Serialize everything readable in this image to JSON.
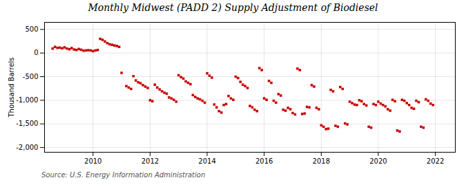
{
  "chart_data": {
    "type": "scatter",
    "title": "Monthly Midwest (PADD 2) Supply Adjustment of Biodiesel",
    "ylabel": "Thousand Barrels",
    "source": "Source: U.S. Energy Information Administration",
    "color": "#cc0000",
    "marker": "square",
    "grid": true,
    "xlim": [
      2008.3,
      2022.7
    ],
    "xticks": [
      2010,
      2012,
      2014,
      2016,
      2018,
      2020,
      2022
    ],
    "ylim": [
      -2100,
      650
    ],
    "yticks": [
      {
        "value": -2000,
        "label": "-2,000"
      },
      {
        "value": -1500,
        "label": "-1,500"
      },
      {
        "value": -1000,
        "label": "-1,000"
      },
      -500,
      0,
      500
    ],
    "x": [
      2008.5833333333333,
      2008.6666666666667,
      2008.75,
      2008.8333333333333,
      2008.9166666666667,
      2009,
      2009.0833333333333,
      2009.1666666666667,
      2009.25,
      2009.3333333333333,
      2009.4166666666667,
      2009.5,
      2009.5833333333333,
      2009.6666666666667,
      2009.75,
      2009.8333333333333,
      2009.9166666666667,
      2010,
      2010.0833333333333,
      2010.1666666666667,
      2010.25,
      2010.3333333333333,
      2010.4166666666667,
      2010.5,
      2010.5833333333333,
      2010.6666666666667,
      2010.75,
      2010.8333333333333,
      2010.9166666666667,
      2011,
      2011.1666666666667,
      2011.25,
      2011.3333333333333,
      2011.4166666666667,
      2011.5,
      2011.5833333333333,
      2011.6666666666667,
      2011.75,
      2011.8333333333333,
      2011.9166666666667,
      2012,
      2012.0833333333333,
      2012.1666666666667,
      2012.25,
      2012.3333333333333,
      2012.4166666666667,
      2012.5,
      2012.5833333333333,
      2012.6666666666667,
      2012.75,
      2012.8333333333333,
      2012.9166666666667,
      2013,
      2013.0833333333333,
      2013.1666666666667,
      2013.25,
      2013.3333333333333,
      2013.4166666666667,
      2013.5,
      2013.5833333333333,
      2013.6666666666667,
      2013.75,
      2013.8333333333333,
      2013.9166666666667,
      2014,
      2014.0833333333333,
      2014.1666666666667,
      2014.25,
      2014.3333333333333,
      2014.4166666666667,
      2014.5,
      2014.5833333333333,
      2014.6666666666667,
      2014.75,
      2014.8333333333333,
      2014.9166666666667,
      2015,
      2015.0833333333333,
      2015.1666666666667,
      2015.25,
      2015.3333333333333,
      2015.4166666666667,
      2015.5,
      2015.5833333333333,
      2015.6666666666667,
      2015.75,
      2015.8333333333333,
      2015.9166666666667,
      2016,
      2016.0833333333333,
      2016.1666666666667,
      2016.25,
      2016.3333333333333,
      2016.4166666666667,
      2016.5,
      2016.5833333333333,
      2016.6666666666667,
      2016.75,
      2016.8333333333333,
      2016.9166666666667,
      2017,
      2017.0833333333333,
      2017.1666666666667,
      2017.25,
      2017.3333333333333,
      2017.4166666666667,
      2017.5,
      2017.5833333333333,
      2017.6666666666667,
      2017.75,
      2017.8333333333333,
      2017.9166666666667,
      2018,
      2018.0833333333333,
      2018.1666666666667,
      2018.25,
      2018.3333333333333,
      2018.4166666666667,
      2018.5,
      2018.5833333333333,
      2018.6666666666667,
      2018.75,
      2018.8333333333333,
      2018.9166666666667,
      2019,
      2019.0833333333333,
      2019.1666666666667,
      2019.25,
      2019.3333333333333,
      2019.4166666666667,
      2019.5,
      2019.5833333333333,
      2019.6666666666667,
      2019.75,
      2019.8333333333333,
      2019.9166666666667,
      2020,
      2020.0833333333333,
      2020.1666666666667,
      2020.25,
      2020.3333333333333,
      2020.4166666666667,
      2020.5,
      2020.5833333333333,
      2020.6666666666667,
      2020.75,
      2020.8333333333333,
      2020.9166666666667,
      2021,
      2021.0833333333333,
      2021.1666666666667,
      2021.25,
      2021.3333333333333,
      2021.4166666666667,
      2021.5,
      2021.5833333333333,
      2021.6666666666667,
      2021.75,
      2021.8333333333333,
      2021.9166666666667
    ],
    "values": [
      95,
      130,
      110,
      115,
      100,
      120,
      95,
      80,
      105,
      75,
      65,
      85,
      70,
      50,
      55,
      60,
      55,
      40,
      55,
      65,
      300,
      280,
      245,
      210,
      185,
      175,
      160,
      150,
      130,
      -420,
      -700,
      -730,
      -760,
      -490,
      -580,
      -620,
      -640,
      -680,
      -710,
      -740,
      -1000,
      -1020,
      -670,
      -730,
      -770,
      -810,
      -840,
      -860,
      -940,
      -960,
      -990,
      -1030,
      -470,
      -510,
      -540,
      -600,
      -630,
      -660,
      -890,
      -930,
      -960,
      -980,
      -1010,
      -1050,
      -430,
      -480,
      -520,
      -1090,
      -1150,
      -1230,
      -1260,
      -1100,
      -1080,
      -910,
      -960,
      -990,
      -500,
      -530,
      -610,
      -670,
      -700,
      -740,
      -1120,
      -1150,
      -1200,
      -1230,
      -320,
      -360,
      -960,
      -990,
      -590,
      -630,
      -1010,
      -1050,
      -870,
      -900,
      -1200,
      -1220,
      -1160,
      -1190,
      -1270,
      -1300,
      -330,
      -360,
      -1290,
      -1280,
      -1140,
      -1150,
      -680,
      -710,
      -1160,
      -1190,
      -1530,
      -1560,
      -1610,
      -1600,
      -780,
      -810,
      -1540,
      -1560,
      -720,
      -760,
      -1490,
      -1510,
      -1030,
      -1060,
      -1090,
      -1100,
      -1000,
      -1020,
      -1080,
      -1110,
      -1560,
      -1580,
      -1080,
      -1100,
      -1030,
      -1070,
      -1100,
      -1130,
      -1190,
      -1220,
      -990,
      -1020,
      -1640,
      -1660,
      -990,
      -1010,
      -1060,
      -1100,
      -1160,
      -1180,
      -1010,
      -1040,
      -1560,
      -1580,
      -980,
      -1010,
      -1070,
      -1100
    ]
  }
}
